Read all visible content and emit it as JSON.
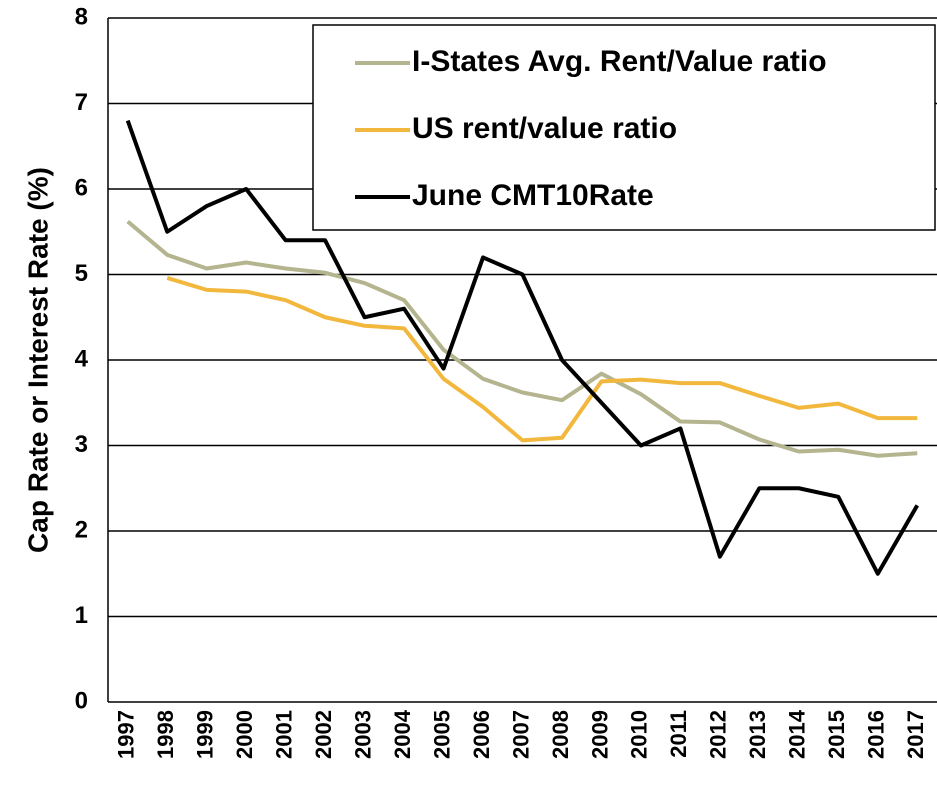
{
  "chart_data": {
    "type": "line",
    "y_label": "Cap Rate or Interest Rate (%)",
    "categories": [
      "1997",
      "1998",
      "1999",
      "2000",
      "2001",
      "2002",
      "2003",
      "2004",
      "2005",
      "2006",
      "2007",
      "2008",
      "2009",
      "2010",
      "2011",
      "2012",
      "2013",
      "2014",
      "2015",
      "2016",
      "2017"
    ],
    "series": [
      {
        "name": "I-States Avg. Rent/Value ratio",
        "color": "#b4b48f",
        "values": [
          5.62,
          5.23,
          5.07,
          5.14,
          5.07,
          5.02,
          4.9,
          4.7,
          4.12,
          3.78,
          3.62,
          3.53,
          3.84,
          3.6,
          3.28,
          3.27,
          3.07,
          2.93,
          2.95,
          2.88,
          2.91
        ]
      },
      {
        "name": "US rent/value ratio",
        "color": "#f2b83e",
        "values": [
          null,
          4.96,
          4.82,
          4.8,
          4.7,
          4.5,
          4.4,
          4.37,
          3.78,
          3.45,
          3.06,
          3.09,
          3.75,
          3.77,
          3.73,
          3.73,
          3.58,
          3.44,
          3.49,
          3.32,
          3.32
        ]
      },
      {
        "name": "June CMT10Rate",
        "color": "#000000",
        "values": [
          6.8,
          5.5,
          5.8,
          6.0,
          5.4,
          5.4,
          4.5,
          4.6,
          3.9,
          5.2,
          5.0,
          4.0,
          3.5,
          3.0,
          3.2,
          1.7,
          2.5,
          2.5,
          2.4,
          1.5,
          2.3
        ]
      }
    ],
    "ylim": [
      0,
      8
    ],
    "yticks": [
      0,
      1,
      2,
      3,
      4,
      5,
      6,
      7,
      8
    ],
    "grid": true,
    "legend": "upper right"
  }
}
